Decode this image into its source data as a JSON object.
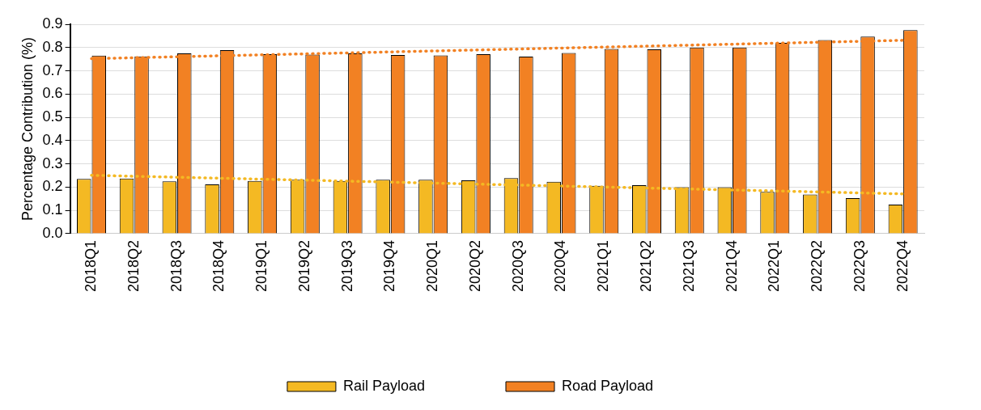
{
  "chart_data": {
    "type": "bar",
    "ylabel": "Percentage Contribution (%)",
    "categories": [
      "2018Q1",
      "2018Q2",
      "2018Q3",
      "2018Q4",
      "2019Q1",
      "2019Q2",
      "2019Q3",
      "2019Q4",
      "2020Q1",
      "2020Q2",
      "2020Q3",
      "2020Q4",
      "2021Q1",
      "2021Q2",
      "2021Q3",
      "2021Q4",
      "2022Q1",
      "2022Q2",
      "2022Q3",
      "2022Q4"
    ],
    "series": [
      {
        "name": "Rail Payload",
        "color": "#f4b923",
        "values": [
          0.235,
          0.237,
          0.225,
          0.212,
          0.227,
          0.232,
          0.227,
          0.232,
          0.232,
          0.229,
          0.239,
          0.223,
          0.206,
          0.208,
          0.2,
          0.2,
          0.18,
          0.168,
          0.153,
          0.125
        ]
      },
      {
        "name": "Road Payload",
        "color": "#f28123",
        "values": [
          0.765,
          0.762,
          0.775,
          0.789,
          0.771,
          0.77,
          0.775,
          0.768,
          0.766,
          0.771,
          0.761,
          0.777,
          0.794,
          0.792,
          0.8,
          0.8,
          0.82,
          0.832,
          0.847,
          0.875
        ]
      },
      {
        "type": "line",
        "color": "#f4b923",
        "line_style": "dotted",
        "marker": "none",
        "x": [
          "2018Q1",
          "2022Q4"
        ],
        "values": [
          0.251,
          0.171
        ]
      },
      {
        "type": "line",
        "color": "#f28123",
        "line_style": "dotted",
        "marker": "none",
        "x": [
          "2018Q1",
          "2022Q4"
        ],
        "values": [
          0.752,
          0.831
        ]
      }
    ],
    "ylim": [
      0,
      0.9
    ],
    "yticks": [
      {
        "value": 0,
        "label": "0.0"
      },
      {
        "value": 0.1,
        "label": "0.1"
      },
      {
        "value": 0.2,
        "label": "0.2"
      },
      {
        "value": 0.3,
        "label": "0.3"
      },
      {
        "value": 0.4,
        "label": "0.4"
      },
      {
        "value": 0.5,
        "label": "0.5"
      },
      {
        "value": 0.6,
        "label": "0.6"
      },
      {
        "value": 0.7,
        "label": "0.7"
      },
      {
        "value": 0.8,
        "label": "0.8"
      },
      {
        "value": 0.9,
        "label": "0.9"
      }
    ],
    "grid": "y",
    "legend": "bottom"
  }
}
